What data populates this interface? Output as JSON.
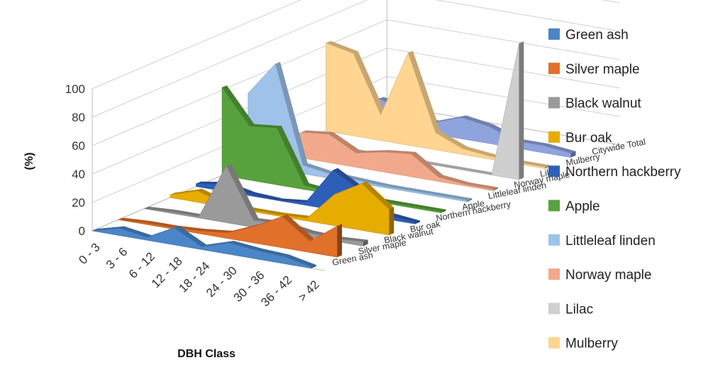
{
  "chart_data": {
    "type": "area",
    "title": "",
    "xlabel": "DBH Class",
    "ylabel": "(%)",
    "ylim": [
      0,
      100
    ],
    "yticks": [
      "0",
      "20",
      "40",
      "60",
      "80",
      "100"
    ],
    "categories": [
      "0 - 3",
      "3 - 6",
      "6 - 12",
      "12 - 18",
      "18 - 24",
      "24 - 30",
      "30 - 36",
      "36 - 42",
      "> 42"
    ],
    "legend_position": "right",
    "series": [
      {
        "name": "Green ash",
        "color": "#4a86c8",
        "values": [
          0,
          5,
          2,
          12,
          2,
          8,
          6,
          5,
          1
        ]
      },
      {
        "name": "Silver maple",
        "color": "#e0702a",
        "values": [
          0,
          1,
          1,
          2,
          4,
          12,
          22,
          8,
          22
        ]
      },
      {
        "name": "Black walnut",
        "color": "#9a9a9a",
        "values": [
          0,
          1,
          1,
          40,
          5,
          6,
          3,
          2,
          3
        ]
      },
      {
        "name": "Bur oak",
        "color": "#e6ac00",
        "values": [
          2,
          8,
          2,
          1,
          1,
          2,
          22,
          33,
          18
        ]
      },
      {
        "name": "Northern hackberry",
        "color": "#2e5fb8",
        "values": [
          2,
          5,
          1,
          0,
          2,
          28,
          17,
          3,
          1
        ]
      },
      {
        "name": "Apple",
        "color": "#57a23c",
        "values": [
          62,
          38,
          40,
          3,
          1,
          1,
          1,
          1,
          1
        ]
      },
      {
        "name": "Littleleaf linden",
        "color": "#9ec2ea",
        "values": [
          50,
          74,
          6,
          3,
          2,
          1,
          1,
          1,
          1
        ]
      },
      {
        "name": "Norway maple",
        "color": "#f2a98b",
        "values": [
          4,
          18,
          20,
          10,
          14,
          16,
          3,
          1,
          1
        ]
      },
      {
        "name": "Lilac",
        "color": "#cfcfcf",
        "values": [
          0,
          0,
          0,
          0,
          0,
          0,
          0,
          0,
          96
        ]
      },
      {
        "name": "Mulberry",
        "color": "#ffd591",
        "values": [
          62,
          58,
          18,
          65,
          12,
          4,
          2,
          1,
          1
        ]
      },
      {
        "name": "Citywide Total",
        "color": "#8fa4de",
        "values": [
          10,
          18,
          14,
          8,
          15,
          12,
          5,
          5,
          3
        ]
      }
    ],
    "legend_entries": [
      "Green ash",
      "Silver maple",
      "Black walnut",
      "Bur oak",
      "Northern hackberry",
      "Apple",
      "Littleleaf linden",
      "Norway maple",
      "Lilac",
      "Mulberry"
    ]
  }
}
